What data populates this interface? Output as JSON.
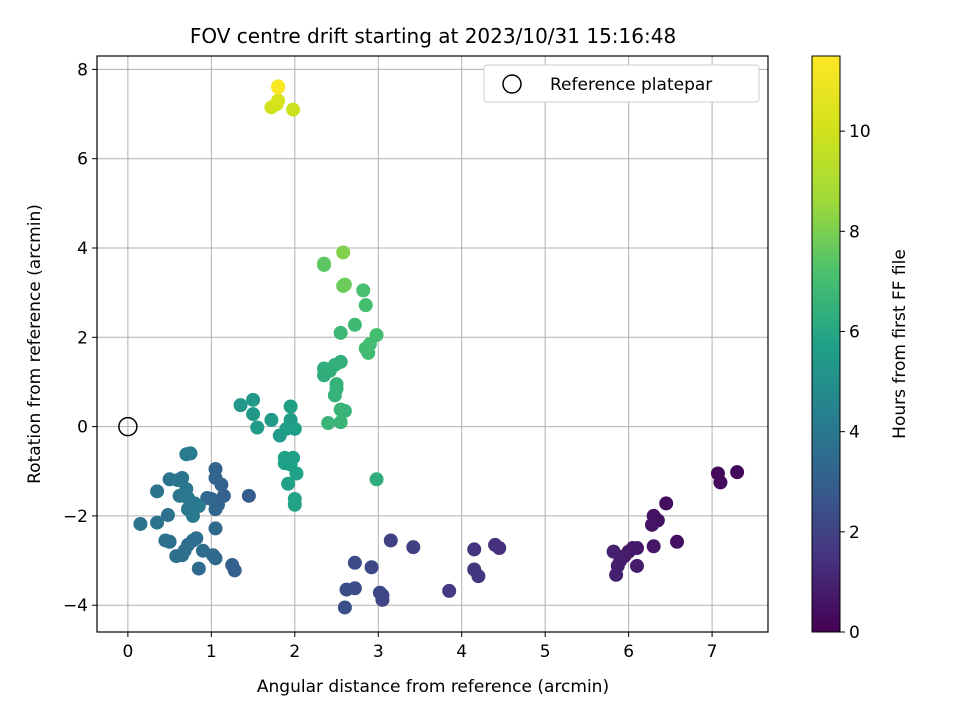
{
  "chart_data": {
    "type": "scatter",
    "title": "FOV centre drift starting at 2023/10/31 15:16:48",
    "xlabel": "Angular distance from reference (arcmin)",
    "ylabel": "Rotation from reference (arcmin)",
    "xlim": [
      -0.37,
      7.67
    ],
    "ylim": [
      -4.6,
      8.3
    ],
    "x_ticks": [
      0,
      1,
      2,
      3,
      4,
      5,
      6,
      7
    ],
    "y_ticks": [
      -4,
      -2,
      0,
      2,
      4,
      6,
      8
    ],
    "grid": true,
    "legend": {
      "position": "top-right",
      "entries": [
        "Reference platepar"
      ]
    },
    "reference_point": {
      "x": 0,
      "y": 0
    },
    "colorbar": {
      "label": "Hours from first FF file",
      "range": [
        0,
        11.5
      ],
      "ticks": [
        0,
        2,
        4,
        6,
        8,
        10
      ],
      "colormap": "viridis"
    },
    "points": [
      {
        "x": 7.07,
        "y": -1.05,
        "c": 0.2
      },
      {
        "x": 7.3,
        "y": -1.02,
        "c": 0.2
      },
      {
        "x": 7.1,
        "y": -1.25,
        "c": 0.25
      },
      {
        "x": 6.45,
        "y": -1.72,
        "c": 0.4
      },
      {
        "x": 6.58,
        "y": -2.58,
        "c": 0.45
      },
      {
        "x": 6.35,
        "y": -2.1,
        "c": 0.5
      },
      {
        "x": 6.3,
        "y": -2.0,
        "c": 0.5
      },
      {
        "x": 6.28,
        "y": -2.2,
        "c": 0.55
      },
      {
        "x": 6.3,
        "y": -2.68,
        "c": 0.6
      },
      {
        "x": 6.1,
        "y": -2.72,
        "c": 0.65
      },
      {
        "x": 6.05,
        "y": -2.72,
        "c": 0.7
      },
      {
        "x": 6.0,
        "y": -2.8,
        "c": 0.7
      },
      {
        "x": 5.95,
        "y": -2.9,
        "c": 0.75
      },
      {
        "x": 6.1,
        "y": -3.12,
        "c": 0.8
      },
      {
        "x": 5.9,
        "y": -3.0,
        "c": 0.85
      },
      {
        "x": 5.87,
        "y": -3.12,
        "c": 0.85
      },
      {
        "x": 5.85,
        "y": -3.32,
        "c": 0.9
      },
      {
        "x": 5.82,
        "y": -2.8,
        "c": 0.95
      },
      {
        "x": 4.45,
        "y": -2.72,
        "c": 1.4
      },
      {
        "x": 4.4,
        "y": -2.65,
        "c": 1.45
      },
      {
        "x": 4.15,
        "y": -2.75,
        "c": 1.5
      },
      {
        "x": 4.15,
        "y": -3.2,
        "c": 1.55
      },
      {
        "x": 4.2,
        "y": -3.35,
        "c": 1.6
      },
      {
        "x": 3.85,
        "y": -3.68,
        "c": 1.7
      },
      {
        "x": 3.42,
        "y": -2.7,
        "c": 1.9
      },
      {
        "x": 3.15,
        "y": -2.55,
        "c": 2.0
      },
      {
        "x": 3.05,
        "y": -3.78,
        "c": 2.1
      },
      {
        "x": 3.05,
        "y": -3.88,
        "c": 2.1
      },
      {
        "x": 3.02,
        "y": -3.72,
        "c": 2.15
      },
      {
        "x": 2.92,
        "y": -3.15,
        "c": 2.2
      },
      {
        "x": 2.72,
        "y": -3.05,
        "c": 2.3
      },
      {
        "x": 2.72,
        "y": -3.62,
        "c": 2.35
      },
      {
        "x": 2.62,
        "y": -3.65,
        "c": 2.4
      },
      {
        "x": 2.6,
        "y": -4.05,
        "c": 2.45
      },
      {
        "x": 1.45,
        "y": -1.55,
        "c": 2.9
      },
      {
        "x": 1.28,
        "y": -3.22,
        "c": 3.0
      },
      {
        "x": 1.25,
        "y": -3.1,
        "c": 3.05
      },
      {
        "x": 1.15,
        "y": -1.55,
        "c": 3.1
      },
      {
        "x": 1.12,
        "y": -1.3,
        "c": 3.15
      },
      {
        "x": 1.05,
        "y": -0.95,
        "c": 3.2
      },
      {
        "x": 1.05,
        "y": -1.15,
        "c": 3.2
      },
      {
        "x": 1.08,
        "y": -1.75,
        "c": 3.25
      },
      {
        "x": 1.05,
        "y": -1.85,
        "c": 3.3
      },
      {
        "x": 1.0,
        "y": -1.62,
        "c": 3.3
      },
      {
        "x": 0.95,
        "y": -1.6,
        "c": 3.35
      },
      {
        "x": 1.05,
        "y": -2.28,
        "c": 3.4
      },
      {
        "x": 1.05,
        "y": -2.95,
        "c": 3.4
      },
      {
        "x": 1.02,
        "y": -2.88,
        "c": 3.45
      },
      {
        "x": 0.9,
        "y": -2.78,
        "c": 3.5
      },
      {
        "x": 0.85,
        "y": -3.18,
        "c": 3.5
      },
      {
        "x": 0.82,
        "y": -2.5,
        "c": 3.55
      },
      {
        "x": 0.78,
        "y": -2.55,
        "c": 3.6
      },
      {
        "x": 0.72,
        "y": -2.65,
        "c": 3.6
      },
      {
        "x": 0.68,
        "y": -2.78,
        "c": 3.65
      },
      {
        "x": 0.65,
        "y": -2.88,
        "c": 3.65
      },
      {
        "x": 0.58,
        "y": -2.9,
        "c": 3.7
      },
      {
        "x": 0.5,
        "y": -2.58,
        "c": 3.7
      },
      {
        "x": 0.45,
        "y": -2.55,
        "c": 3.75
      },
      {
        "x": 0.48,
        "y": -1.98,
        "c": 3.75
      },
      {
        "x": 0.35,
        "y": -2.15,
        "c": 3.8
      },
      {
        "x": 0.15,
        "y": -2.18,
        "c": 3.8
      },
      {
        "x": 0.35,
        "y": -1.45,
        "c": 3.85
      },
      {
        "x": 0.5,
        "y": -1.18,
        "c": 3.85
      },
      {
        "x": 0.6,
        "y": -1.2,
        "c": 3.9
      },
      {
        "x": 0.65,
        "y": -1.15,
        "c": 3.9
      },
      {
        "x": 0.62,
        "y": -1.55,
        "c": 3.95
      },
      {
        "x": 0.7,
        "y": -1.4,
        "c": 3.95
      },
      {
        "x": 0.72,
        "y": -1.6,
        "c": 4.0
      },
      {
        "x": 0.72,
        "y": -1.85,
        "c": 4.0
      },
      {
        "x": 0.78,
        "y": -2.0,
        "c": 4.05
      },
      {
        "x": 0.8,
        "y": -1.72,
        "c": 4.05
      },
      {
        "x": 0.85,
        "y": -1.78,
        "c": 4.1
      },
      {
        "x": 0.7,
        "y": -0.62,
        "c": 4.15
      },
      {
        "x": 0.75,
        "y": -0.6,
        "c": 4.2
      },
      {
        "x": 1.35,
        "y": 0.48,
        "c": 5.3
      },
      {
        "x": 1.5,
        "y": 0.6,
        "c": 5.35
      },
      {
        "x": 1.5,
        "y": 0.28,
        "c": 5.4
      },
      {
        "x": 1.55,
        "y": -0.02,
        "c": 5.45
      },
      {
        "x": 1.72,
        "y": 0.15,
        "c": 5.5
      },
      {
        "x": 1.82,
        "y": -0.2,
        "c": 5.55
      },
      {
        "x": 1.9,
        "y": -0.05,
        "c": 5.6
      },
      {
        "x": 1.95,
        "y": 0.15,
        "c": 5.6
      },
      {
        "x": 1.95,
        "y": 0.45,
        "c": 5.65
      },
      {
        "x": 2.0,
        "y": -0.05,
        "c": 5.65
      },
      {
        "x": 1.98,
        "y": -0.7,
        "c": 5.7
      },
      {
        "x": 1.88,
        "y": -0.7,
        "c": 5.7
      },
      {
        "x": 1.88,
        "y": -0.82,
        "c": 5.75
      },
      {
        "x": 1.95,
        "y": -0.85,
        "c": 5.75
      },
      {
        "x": 2.02,
        "y": -1.05,
        "c": 5.8
      },
      {
        "x": 1.92,
        "y": -1.28,
        "c": 5.8
      },
      {
        "x": 2.0,
        "y": -1.62,
        "c": 5.85
      },
      {
        "x": 2.0,
        "y": -1.75,
        "c": 5.85
      },
      {
        "x": 2.98,
        "y": -1.18,
        "c": 6.3
      },
      {
        "x": 2.35,
        "y": 1.15,
        "c": 6.3
      },
      {
        "x": 2.35,
        "y": 1.3,
        "c": 6.35
      },
      {
        "x": 2.42,
        "y": 1.25,
        "c": 6.35
      },
      {
        "x": 2.48,
        "y": 1.38,
        "c": 6.4
      },
      {
        "x": 2.55,
        "y": 1.45,
        "c": 6.45
      },
      {
        "x": 2.5,
        "y": 0.95,
        "c": 6.5
      },
      {
        "x": 2.5,
        "y": 0.85,
        "c": 6.5
      },
      {
        "x": 2.48,
        "y": 0.7,
        "c": 6.55
      },
      {
        "x": 2.55,
        "y": 0.38,
        "c": 6.6
      },
      {
        "x": 2.6,
        "y": 0.35,
        "c": 6.6
      },
      {
        "x": 2.55,
        "y": 0.1,
        "c": 6.65
      },
      {
        "x": 2.4,
        "y": 0.08,
        "c": 6.65
      },
      {
        "x": 2.55,
        "y": 2.1,
        "c": 6.8
      },
      {
        "x": 2.72,
        "y": 2.28,
        "c": 6.85
      },
      {
        "x": 2.85,
        "y": 1.75,
        "c": 6.9
      },
      {
        "x": 2.88,
        "y": 1.65,
        "c": 6.9
      },
      {
        "x": 2.9,
        "y": 1.85,
        "c": 6.95
      },
      {
        "x": 2.98,
        "y": 2.05,
        "c": 7.0
      },
      {
        "x": 2.85,
        "y": 2.72,
        "c": 7.05
      },
      {
        "x": 2.82,
        "y": 3.05,
        "c": 7.1
      },
      {
        "x": 2.35,
        "y": 3.65,
        "c": 7.5
      },
      {
        "x": 2.35,
        "y": 3.62,
        "c": 7.5
      },
      {
        "x": 2.58,
        "y": 3.15,
        "c": 7.7
      },
      {
        "x": 2.6,
        "y": 3.18,
        "c": 7.75
      },
      {
        "x": 2.58,
        "y": 3.9,
        "c": 8.1
      },
      {
        "x": 1.98,
        "y": 7.1,
        "c": 9.9
      },
      {
        "x": 1.72,
        "y": 7.15,
        "c": 10.0
      },
      {
        "x": 1.78,
        "y": 7.22,
        "c": 10.1
      },
      {
        "x": 1.8,
        "y": 7.3,
        "c": 10.2
      },
      {
        "x": 1.8,
        "y": 7.6,
        "c": 11.3
      },
      {
        "x": 1.8,
        "y": 7.62,
        "c": 11.4
      }
    ]
  }
}
